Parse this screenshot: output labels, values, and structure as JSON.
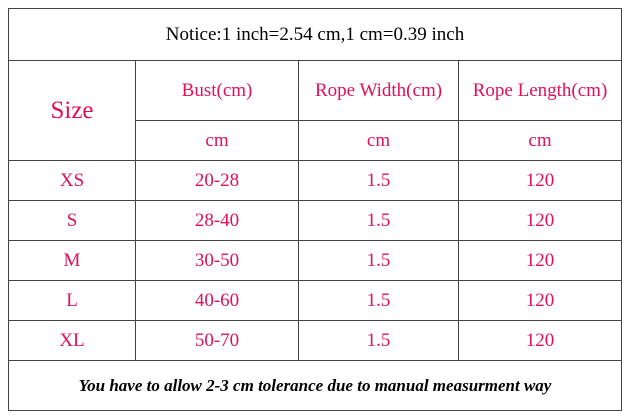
{
  "notice": "Notice:1 inch=2.54 cm,1 cm=0.39 inch",
  "header": {
    "size": "Size",
    "columns": [
      "Bust(cm)",
      "Rope Width(cm)",
      "Rope Length(cm)"
    ],
    "units": [
      "cm",
      "cm",
      "cm"
    ]
  },
  "table": {
    "rows": [
      [
        "XS",
        "20-28",
        "1.5",
        "120"
      ],
      [
        "S",
        "28-40",
        "1.5",
        "120"
      ],
      [
        "M",
        "30-50",
        "1.5",
        "120"
      ],
      [
        "L",
        "40-60",
        "1.5",
        "120"
      ],
      [
        "XL",
        "50-70",
        "1.5",
        "120"
      ]
    ]
  },
  "footer": "You have to allow 2-3 cm tolerance due to manual measurment way"
}
